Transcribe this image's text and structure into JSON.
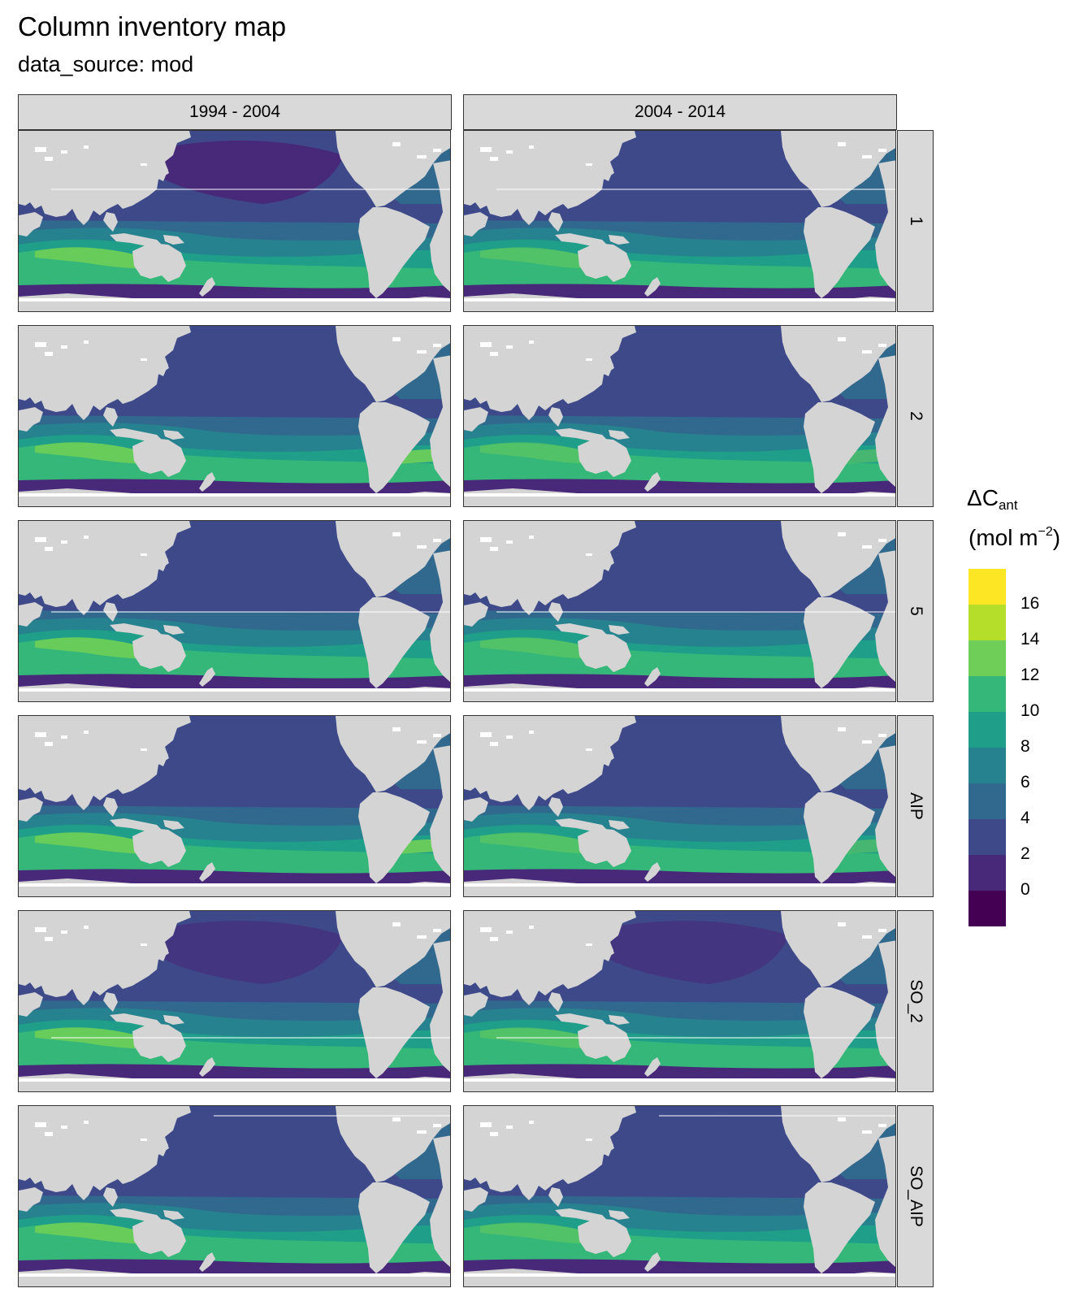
{
  "title": "Column inventory map",
  "subtitle": "data_source: mod",
  "columns": [
    "1994 - 2004",
    "2004 - 2014"
  ],
  "rows": [
    "1",
    "2",
    "5",
    "AIP",
    "SO_2",
    "SO_AIP"
  ],
  "legend": {
    "title_main": "ΔC",
    "title_sub": "ant",
    "unit_pre": "(mol m",
    "unit_sup": "−2",
    "unit_post": ")",
    "ticks": [
      "16",
      "14",
      "12",
      "10",
      "8",
      "6",
      "4",
      "2",
      "0"
    ],
    "colors": [
      "#fde725",
      "#b5de2b",
      "#6ece58",
      "#35b779",
      "#1f9e89",
      "#26828e",
      "#31688e",
      "#3e4989",
      "#482878",
      "#440154"
    ]
  },
  "colors": {
    "land": "#d4d4d4",
    "ice": "#ffffff",
    "strip": "#d9d9d9"
  }
}
